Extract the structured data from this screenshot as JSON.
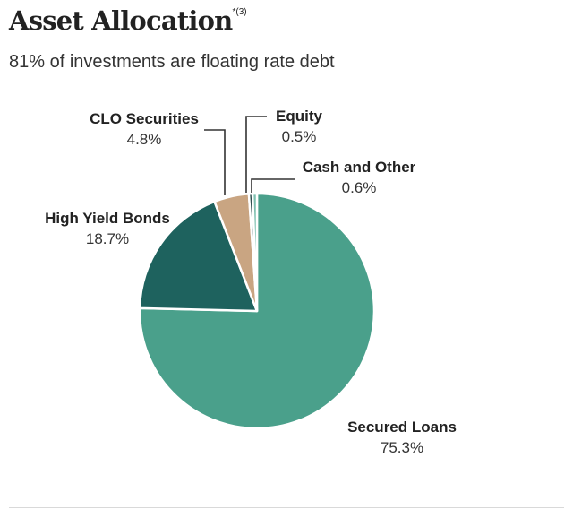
{
  "header": {
    "title": "Asset Allocation",
    "title_note": "*(3)",
    "subtitle": "81% of investments are floating rate debt"
  },
  "chart_data": {
    "type": "pie",
    "title": "Asset Allocation",
    "subtitle": "81% of investments are floating rate debt",
    "slices": [
      {
        "label": "Secured Loans",
        "value": 75.3,
        "value_label": "75.3%",
        "color": "#4aa08b"
      },
      {
        "label": "High Yield Bonds",
        "value": 18.7,
        "value_label": "18.7%",
        "color": "#1e625e"
      },
      {
        "label": "CLO Securities",
        "value": 4.8,
        "value_label": "4.8%",
        "color": "#c9a582"
      },
      {
        "label": "Equity",
        "value": 0.5,
        "value_label": "0.5%",
        "color": "#2f4f4f"
      },
      {
        "label": "Cash and Other",
        "value": 0.6,
        "value_label": "0.6%",
        "color": "#7fc0b0"
      }
    ],
    "start": "12 o'clock",
    "direction": "clockwise"
  }
}
